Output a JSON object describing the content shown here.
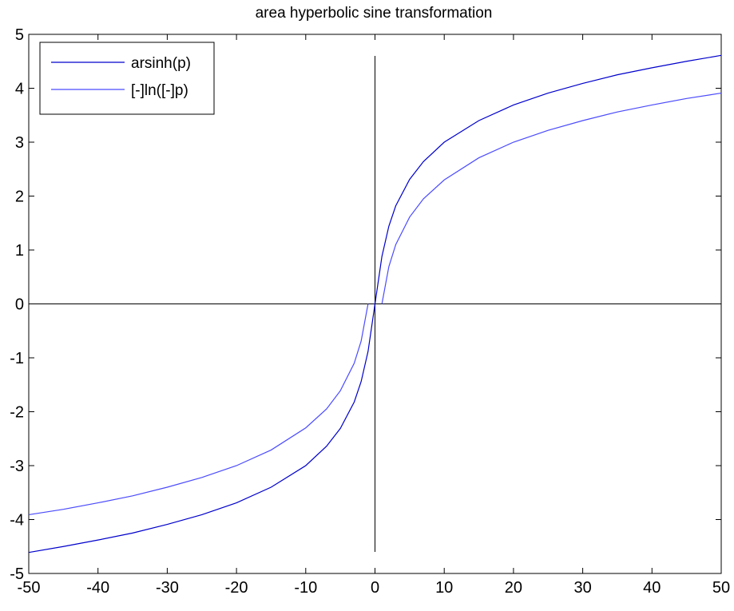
{
  "chart_data": {
    "type": "line",
    "title": "area hyperbolic sine transformation",
    "xlabel": "",
    "ylabel": "",
    "xlim": [
      -50,
      50
    ],
    "ylim": [
      -5,
      5
    ],
    "x_ticks": [
      -50,
      -40,
      -30,
      -20,
      -10,
      0,
      10,
      20,
      30,
      40,
      50
    ],
    "y_ticks": [
      -5,
      -4,
      -3,
      -2,
      -1,
      0,
      1,
      2,
      3,
      4,
      5
    ],
    "x_tick_labels": [
      "-50",
      "-40",
      "-30",
      "-20",
      "-10",
      "0",
      "10",
      "20",
      "30",
      "40",
      "50"
    ],
    "y_tick_labels": [
      "-5",
      "-4",
      "-3",
      "-2",
      "-1",
      "0",
      "1",
      "2",
      "3",
      "4",
      "5"
    ],
    "grid": false,
    "legend_position": "top-left",
    "reference_lines": [
      {
        "orientation": "horizontal",
        "value": 0,
        "color": "#000000"
      },
      {
        "orientation": "vertical",
        "value": 0,
        "y_range": [
          -4.6,
          4.6
        ],
        "color": "#000000"
      }
    ],
    "x": [
      -50,
      -45,
      -40,
      -35,
      -30,
      -25,
      -20,
      -15,
      -10,
      -7,
      -5,
      -3,
      -2,
      -1,
      0,
      1,
      2,
      3,
      5,
      7,
      10,
      15,
      20,
      25,
      30,
      35,
      40,
      45,
      50
    ],
    "series": [
      {
        "name": "arsinh(p)",
        "color": "#0000cc",
        "values": [
          -4.61,
          -4.5,
          -4.38,
          -4.25,
          -4.09,
          -3.91,
          -3.69,
          -3.4,
          -3.0,
          -2.64,
          -2.31,
          -1.82,
          -1.44,
          -0.88,
          0.0,
          0.88,
          1.44,
          1.82,
          2.31,
          2.64,
          3.0,
          3.4,
          3.69,
          3.91,
          4.09,
          4.25,
          4.38,
          4.5,
          4.61
        ]
      },
      {
        "name": "[-]ln([-]p)",
        "color": "#4b4bff",
        "values": [
          -3.91,
          -3.81,
          -3.69,
          -3.56,
          -3.4,
          -3.22,
          -3.0,
          -2.71,
          -2.3,
          -1.95,
          -1.61,
          -1.1,
          -0.69,
          0.0,
          null,
          0.0,
          0.69,
          1.1,
          1.61,
          1.95,
          2.3,
          2.71,
          3.0,
          3.22,
          3.4,
          3.56,
          3.69,
          3.81,
          3.91
        ]
      }
    ]
  }
}
